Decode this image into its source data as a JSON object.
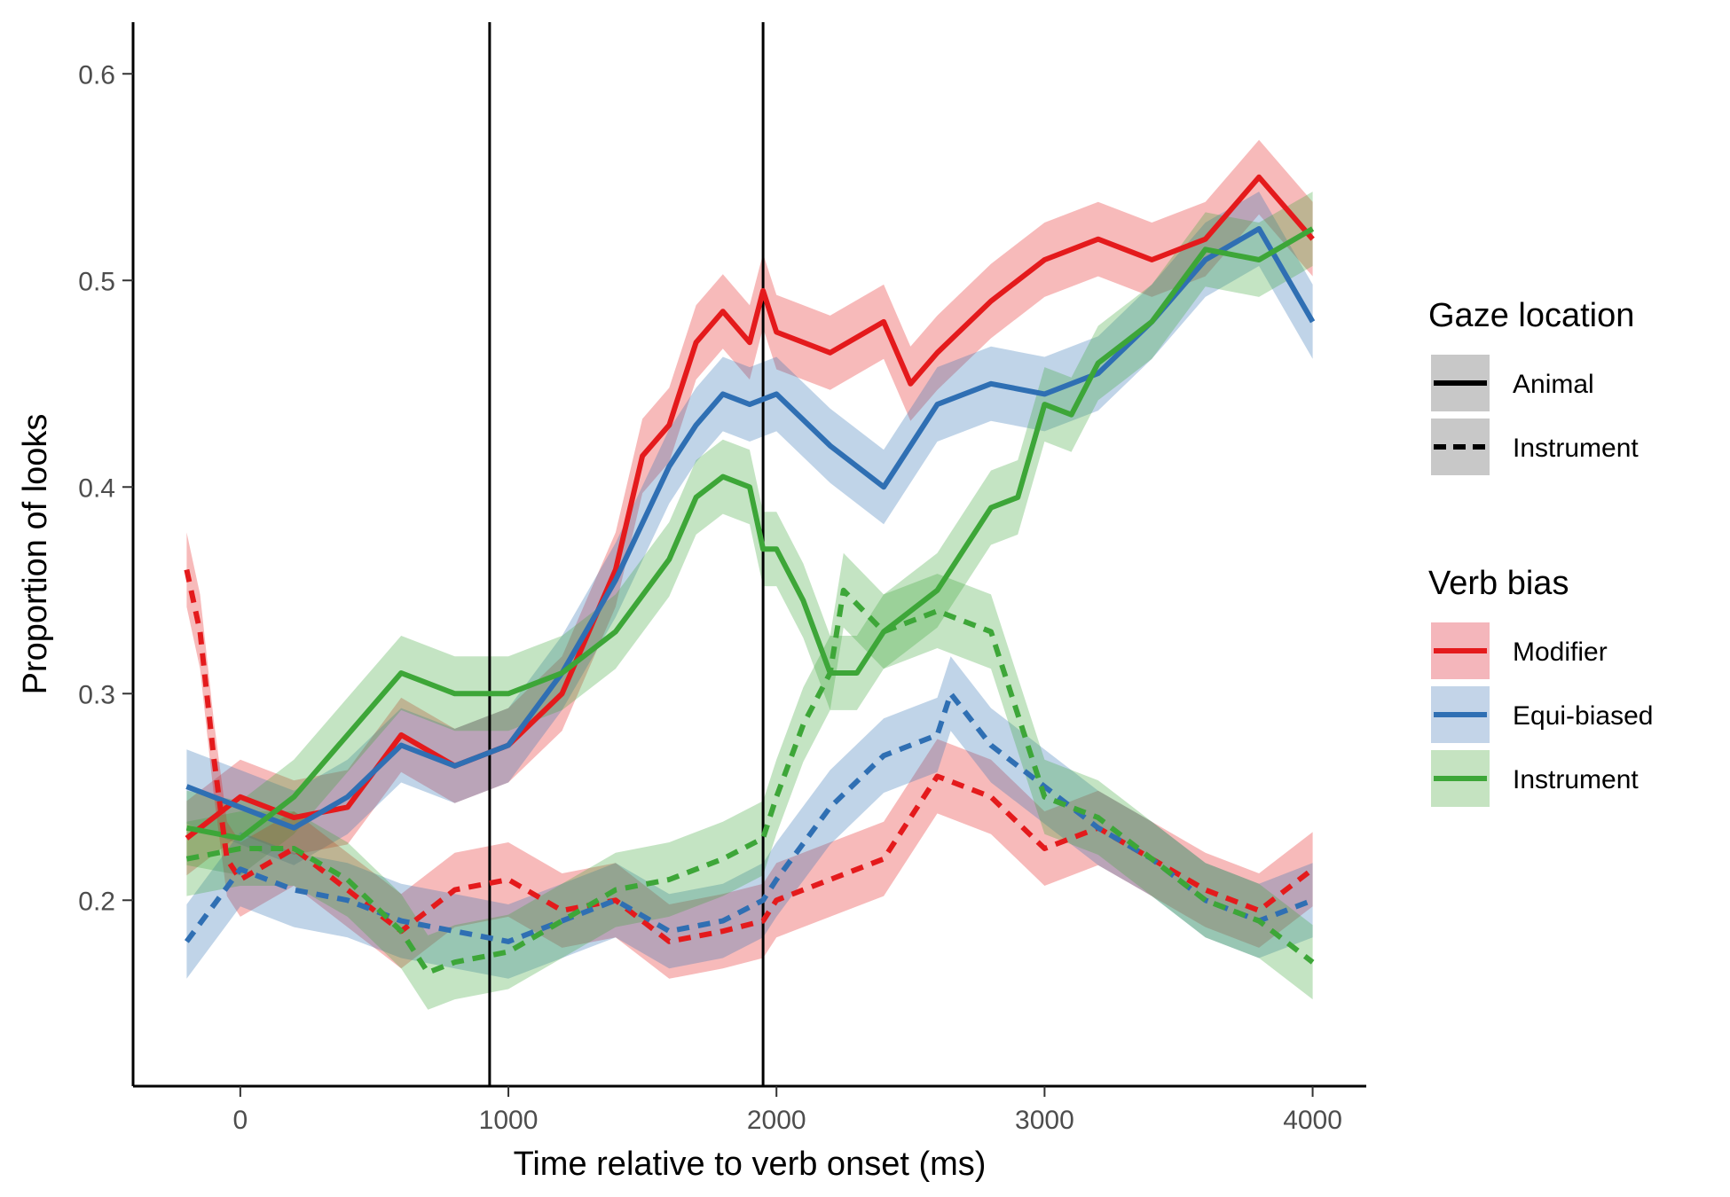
{
  "chart_data": {
    "type": "line",
    "title": "",
    "xlabel": "Time relative to verb onset (ms)",
    "ylabel": "Proportion of looks",
    "xlim": [
      -400,
      4200
    ],
    "ylim": [
      0.11,
      0.625
    ],
    "xticks": [
      0,
      1000,
      2000,
      3000,
      4000
    ],
    "xtick_labels": [
      "0",
      "1000",
      "2000",
      "3000",
      "4000"
    ],
    "yticks": [
      0.2,
      0.3,
      0.4,
      0.5,
      0.6
    ],
    "ytick_labels": [
      "0.2",
      "0.3",
      "0.4",
      "0.5",
      "0.6"
    ],
    "grid": false,
    "vlines": [
      930,
      1950
    ],
    "legend_placement": "right",
    "legend": {
      "linetype_title": "Gaze location",
      "linetype_entries": [
        {
          "label": "Animal",
          "dash": "solid"
        },
        {
          "label": "Instrument",
          "dash": "dashed"
        }
      ],
      "color_title": "Verb bias",
      "color_entries": [
        {
          "label": "Modifier",
          "color": "#e41a1c"
        },
        {
          "label": "Equi-biased",
          "color": "#2f6fb3"
        },
        {
          "label": "Instrument",
          "color": "#3da638"
        }
      ]
    },
    "series": [
      {
        "verb_bias": "Modifier",
        "gaze": "Animal",
        "color": "#e41a1c",
        "dash": "solid",
        "band": 0.018,
        "x": [
          -200,
          0,
          200,
          400,
          600,
          800,
          1000,
          1200,
          1400,
          1500,
          1600,
          1700,
          1800,
          1900,
          1950,
          2000,
          2200,
          2400,
          2500,
          2600,
          2800,
          3000,
          3200,
          3400,
          3600,
          3800,
          4000
        ],
        "y": [
          0.23,
          0.25,
          0.24,
          0.245,
          0.28,
          0.265,
          0.275,
          0.3,
          0.36,
          0.415,
          0.43,
          0.47,
          0.485,
          0.47,
          0.495,
          0.475,
          0.465,
          0.48,
          0.45,
          0.465,
          0.49,
          0.51,
          0.52,
          0.51,
          0.52,
          0.55,
          0.52
        ]
      },
      {
        "verb_bias": "Equi-biased",
        "gaze": "Animal",
        "color": "#2f6fb3",
        "dash": "solid",
        "band": 0.018,
        "x": [
          -200,
          0,
          200,
          400,
          600,
          800,
          1000,
          1200,
          1400,
          1600,
          1700,
          1800,
          1900,
          2000,
          2200,
          2400,
          2600,
          2800,
          3000,
          3200,
          3400,
          3600,
          3800,
          4000
        ],
        "y": [
          0.255,
          0.245,
          0.235,
          0.25,
          0.275,
          0.265,
          0.275,
          0.31,
          0.355,
          0.41,
          0.43,
          0.445,
          0.44,
          0.445,
          0.42,
          0.4,
          0.44,
          0.45,
          0.445,
          0.455,
          0.48,
          0.51,
          0.525,
          0.48
        ]
      },
      {
        "verb_bias": "Instrument",
        "gaze": "Animal",
        "color": "#3da638",
        "dash": "solid",
        "band": 0.018,
        "x": [
          -200,
          0,
          200,
          400,
          600,
          800,
          1000,
          1200,
          1400,
          1600,
          1700,
          1800,
          1900,
          1950,
          2000,
          2100,
          2200,
          2300,
          2400,
          2600,
          2800,
          2900,
          3000,
          3100,
          3200,
          3400,
          3600,
          3800,
          4000
        ],
        "y": [
          0.235,
          0.23,
          0.25,
          0.28,
          0.31,
          0.3,
          0.3,
          0.31,
          0.33,
          0.365,
          0.395,
          0.405,
          0.4,
          0.37,
          0.37,
          0.345,
          0.31,
          0.31,
          0.33,
          0.35,
          0.39,
          0.395,
          0.44,
          0.435,
          0.46,
          0.48,
          0.515,
          0.51,
          0.525
        ]
      },
      {
        "verb_bias": "Modifier",
        "gaze": "Instrument",
        "color": "#e41a1c",
        "dash": "dashed",
        "band": 0.018,
        "x": [
          -200,
          -150,
          -100,
          -50,
          0,
          200,
          400,
          600,
          800,
          1000,
          1200,
          1400,
          1600,
          1800,
          1950,
          2000,
          2200,
          2400,
          2600,
          2800,
          3000,
          3200,
          3400,
          3600,
          3800,
          4000
        ],
        "y": [
          0.36,
          0.33,
          0.27,
          0.22,
          0.21,
          0.225,
          0.205,
          0.185,
          0.205,
          0.21,
          0.195,
          0.2,
          0.18,
          0.185,
          0.19,
          0.2,
          0.21,
          0.22,
          0.26,
          0.25,
          0.225,
          0.235,
          0.22,
          0.205,
          0.195,
          0.215
        ]
      },
      {
        "verb_bias": "Equi-biased",
        "gaze": "Instrument",
        "color": "#2f6fb3",
        "dash": "dashed",
        "band": 0.018,
        "x": [
          -200,
          0,
          200,
          400,
          600,
          800,
          1000,
          1200,
          1400,
          1600,
          1800,
          1950,
          2000,
          2200,
          2400,
          2600,
          2650,
          2800,
          3000,
          3200,
          3400,
          3600,
          3800,
          4000
        ],
        "y": [
          0.18,
          0.215,
          0.205,
          0.2,
          0.19,
          0.185,
          0.18,
          0.19,
          0.2,
          0.185,
          0.19,
          0.2,
          0.21,
          0.245,
          0.27,
          0.28,
          0.3,
          0.275,
          0.255,
          0.235,
          0.22,
          0.2,
          0.19,
          0.2
        ]
      },
      {
        "verb_bias": "Instrument",
        "gaze": "Instrument",
        "color": "#3da638",
        "dash": "dashed",
        "band": 0.018,
        "x": [
          -200,
          0,
          200,
          400,
          600,
          700,
          800,
          1000,
          1200,
          1400,
          1600,
          1800,
          1950,
          2000,
          2100,
          2200,
          2250,
          2400,
          2600,
          2800,
          3000,
          3200,
          3400,
          3600,
          3800,
          4000
        ],
        "y": [
          0.22,
          0.225,
          0.225,
          0.21,
          0.185,
          0.165,
          0.17,
          0.175,
          0.19,
          0.205,
          0.21,
          0.22,
          0.23,
          0.25,
          0.285,
          0.31,
          0.35,
          0.33,
          0.34,
          0.33,
          0.25,
          0.24,
          0.22,
          0.2,
          0.19,
          0.17
        ]
      }
    ]
  }
}
